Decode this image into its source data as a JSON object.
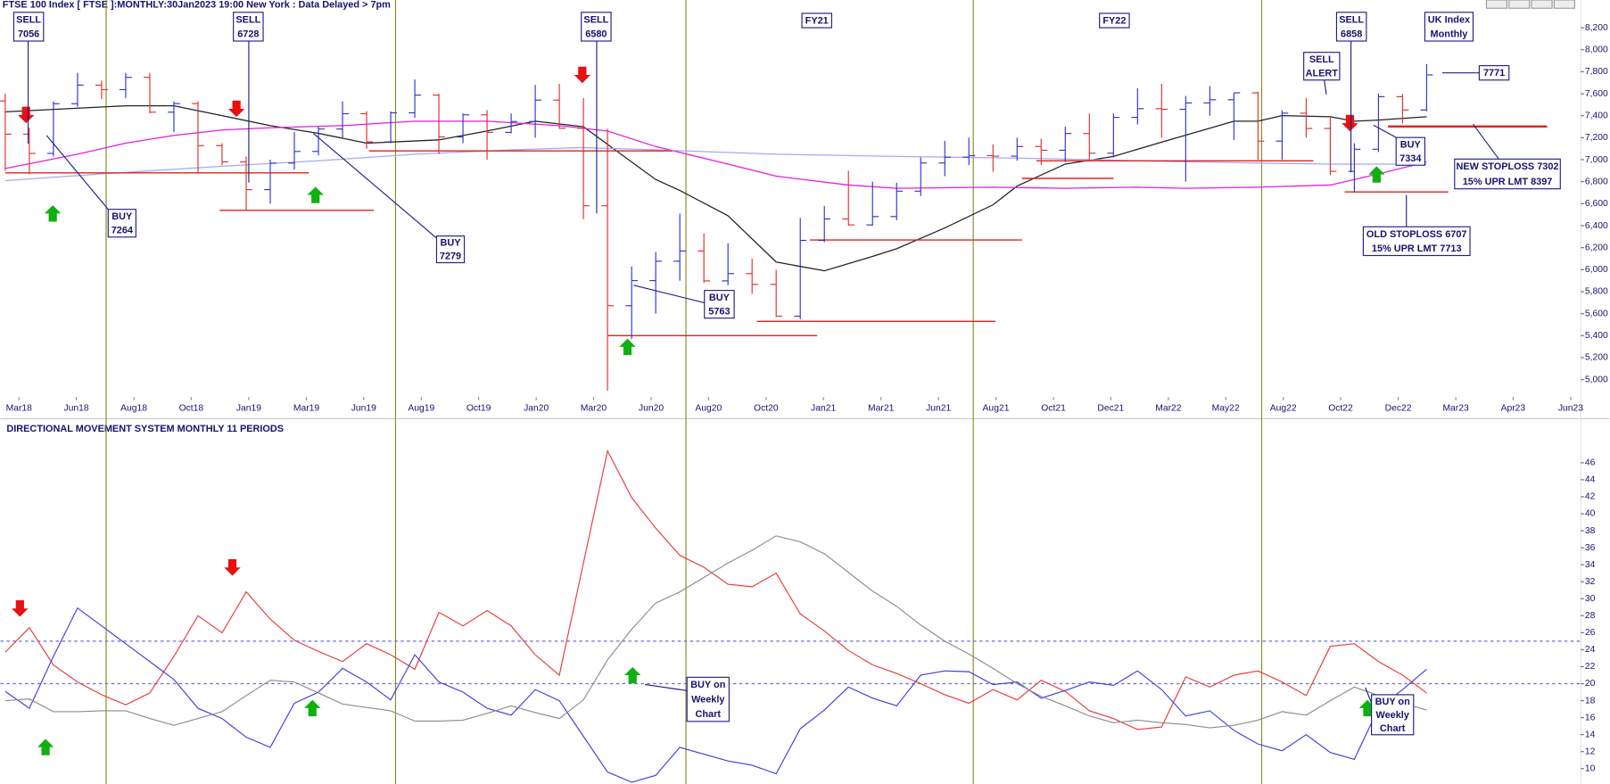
{
  "chart_data": [
    {
      "type": "ohlc",
      "title": "FTSE 100 Index [ FTSE ]:MONTHLY:30Jan2023 19:00 New York : Data Delayed > 7pm",
      "up_color": "#3333cc",
      "down_color": "#e03030",
      "open": [
        7534,
        7232,
        7057,
        7509,
        7678,
        7637,
        7749,
        7432,
        7510,
        7128,
        6980,
        6728,
        6969,
        7075,
        7279,
        7418,
        7162,
        7426,
        7587,
        7207,
        7408,
        7248,
        7347,
        7542,
        7286,
        6581,
        5672,
        5901,
        6077,
        6170,
        5898,
        5964,
        5866,
        5577,
        6266,
        6461,
        6407,
        6483,
        6714,
        6970,
        7023,
        7037,
        7032,
        7120,
        7086,
        7238,
        7059,
        7385,
        7464,
        7458,
        7516,
        7545,
        7608,
        7169,
        7423,
        7284,
        6894,
        7095,
        7573,
        7452
      ],
      "high": [
        7600,
        7290,
        7530,
        7790,
        7720,
        7790,
        7790,
        7530,
        7530,
        7150,
        7030,
        7000,
        7250,
        7300,
        7530,
        7440,
        7440,
        7730,
        7600,
        7420,
        7450,
        7420,
        7680,
        7690,
        7560,
        7280,
        6030,
        6160,
        6510,
        6330,
        6240,
        6100,
        6000,
        6470,
        6580,
        6900,
        6800,
        6790,
        7020,
        7170,
        7200,
        7140,
        7200,
        7190,
        7300,
        7420,
        7420,
        7650,
        7690,
        7580,
        7670,
        7610,
        7620,
        7450,
        7560,
        7400,
        7150,
        7600,
        7600,
        7870
      ],
      "low": [
        6900,
        6867,
        7030,
        7480,
        7550,
        7560,
        7420,
        7250,
        6880,
        6950,
        6540,
        6600,
        6910,
        7040,
        7200,
        7100,
        7150,
        7380,
        7050,
        7150,
        7000,
        7240,
        7200,
        7280,
        6460,
        4900,
        5370,
        5600,
        5900,
        5880,
        5860,
        5780,
        5570,
        5550,
        6250,
        6400,
        6400,
        6450,
        6670,
        6850,
        6950,
        6890,
        6990,
        6950,
        6980,
        7000,
        7020,
        7320,
        7200,
        6800,
        7400,
        7180,
        7000,
        7000,
        7200,
        6860,
        6700,
        7070,
        7330,
        7440
      ],
      "close": [
        7232,
        7057,
        7509,
        7678,
        7637,
        7749,
        7432,
        7510,
        7128,
        6980,
        6728,
        6969,
        7075,
        7279,
        7418,
        7162,
        7426,
        7587,
        7207,
        7408,
        7248,
        7347,
        7542,
        7286,
        6581,
        5672,
        5901,
        6077,
        6170,
        5898,
        5964,
        5866,
        5577,
        6266,
        6461,
        6407,
        6483,
        6714,
        6970,
        7023,
        7037,
        7032,
        7120,
        7086,
        7238,
        7059,
        7385,
        7464,
        7458,
        7516,
        7545,
        7608,
        7169,
        7423,
        7284,
        6894,
        7095,
        7573,
        7452,
        7771
      ],
      "lines": [
        {
          "color": "#222222",
          "x": [
            0,
            5,
            7,
            9,
            11,
            13,
            15,
            18,
            20,
            22,
            24,
            27,
            28,
            30,
            32,
            34,
            36,
            37,
            39,
            41,
            42,
            44,
            46,
            48,
            51,
            52,
            53,
            55,
            56,
            57,
            59
          ],
          "values": [
            7435,
            7490,
            7490,
            7400,
            7310,
            7240,
            7150,
            7180,
            7260,
            7350,
            7300,
            6820,
            6720,
            6490,
            6070,
            5990,
            6120,
            6190,
            6380,
            6590,
            6760,
            6960,
            7030,
            7160,
            7350,
            7350,
            7400,
            7390,
            7350,
            7360,
            7390
          ]
        },
        {
          "color": "#e020e0",
          "x": [
            0,
            3,
            5,
            7,
            9,
            11,
            14,
            17,
            20,
            23,
            25,
            27,
            30,
            32,
            35,
            37,
            41,
            44,
            47,
            49,
            52,
            55,
            57,
            59
          ],
          "values": [
            6920,
            7050,
            7150,
            7220,
            7270,
            7290,
            7310,
            7350,
            7350,
            7310,
            7260,
            7120,
            6960,
            6850,
            6770,
            6740,
            6750,
            6740,
            6750,
            6740,
            6750,
            6770,
            6870,
            6980
          ]
        },
        {
          "color": "#a8a8f0",
          "x": [
            0,
            4,
            9,
            13,
            17,
            21,
            24,
            27,
            32,
            37,
            43,
            49,
            55,
            59
          ],
          "values": [
            6810,
            6870,
            6940,
            6990,
            7050,
            7090,
            7110,
            7090,
            7050,
            7030,
            7010,
            6980,
            6960,
            6960
          ]
        }
      ],
      "levels": [
        {
          "value": 6880,
          "from": 0,
          "to": 12.6
        },
        {
          "value": 6540,
          "from": 8.9,
          "to": 15.3
        },
        {
          "value": 7080,
          "from": 15.1,
          "to": 27.7
        },
        {
          "value": 5400,
          "from": 25.0,
          "to": 33.7
        },
        {
          "value": 5530,
          "from": 31.2,
          "to": 41.1
        },
        {
          "value": 6270,
          "from": 33.4,
          "to": 42.2
        },
        {
          "value": 6830,
          "from": 42.2,
          "to": 46.0
        },
        {
          "value": 6990,
          "from": 42.8,
          "to": 54.3
        },
        {
          "value": 6707,
          "from": 55.6,
          "to": 59.9
        },
        {
          "value": 7302,
          "from": 57.4,
          "to": 64.0
        }
      ],
      "level_color": "#e02020",
      "annotations": [
        {
          "lines": [
            "SELL",
            "7056"
          ]
        },
        {
          "lines": [
            "SELL",
            "6728"
          ]
        },
        {
          "lines": [
            "SELL",
            "6580"
          ]
        },
        {
          "lines": [
            "FY21"
          ]
        },
        {
          "lines": [
            "FY22"
          ]
        },
        {
          "lines": [
            "SELL",
            "6858"
          ]
        },
        {
          "lines": [
            "UK Index",
            "Monthly"
          ]
        },
        {
          "lines": [
            "SELL",
            "ALERT"
          ]
        },
        {
          "lines": [
            "7771"
          ]
        },
        {
          "lines": [
            "BUY",
            "7264"
          ]
        },
        {
          "lines": [
            "BUY",
            "7279"
          ]
        },
        {
          "lines": [
            "BUY",
            "5763"
          ]
        },
        {
          "lines": [
            "BUY",
            "7334"
          ]
        },
        {
          "lines": [
            "NEW STOPLOSS 7302",
            "15% UPR LMT 8397"
          ]
        },
        {
          "lines": [
            "OLD STOPLOSS 6707",
            "15% UPR LMT 7713"
          ]
        }
      ],
      "xlim": [
        -0.2,
        65.4
      ],
      "xticks": [
        {
          "value": 0.57,
          "label": "Mar18"
        },
        {
          "value": 2.95,
          "label": "Jun18"
        },
        {
          "value": 5.34,
          "label": "Aug18"
        },
        {
          "value": 7.72,
          "label": "Oct18"
        },
        {
          "value": 10.11,
          "label": "Jan19"
        },
        {
          "value": 12.5,
          "label": "Mar19"
        },
        {
          "value": 14.88,
          "label": "Jun19"
        },
        {
          "value": 17.27,
          "label": "Aug19"
        },
        {
          "value": 19.65,
          "label": "Oct19"
        },
        {
          "value": 22.04,
          "label": "Jan20"
        },
        {
          "value": 24.42,
          "label": "Mar20"
        },
        {
          "value": 26.81,
          "label": "Jun20"
        },
        {
          "value": 29.19,
          "label": "Aug20"
        },
        {
          "value": 31.58,
          "label": "Oct20"
        },
        {
          "value": 33.96,
          "label": "Jan21"
        },
        {
          "value": 36.35,
          "label": "Mar21"
        },
        {
          "value": 38.74,
          "label": "Jun21"
        },
        {
          "value": 41.12,
          "label": "Aug21"
        },
        {
          "value": 43.51,
          "label": "Oct21"
        },
        {
          "value": 45.89,
          "label": "Dec21"
        },
        {
          "value": 48.28,
          "label": "Mar22"
        },
        {
          "value": 50.66,
          "label": "May22"
        },
        {
          "value": 53.05,
          "label": "Aug22"
        },
        {
          "value": 55.43,
          "label": "Oct22"
        },
        {
          "value": 57.82,
          "label": "Dec22"
        },
        {
          "value": 60.21,
          "label": "Mar23"
        },
        {
          "value": 62.59,
          "label": "Apr23"
        },
        {
          "value": 64.98,
          "label": "Jun23"
        }
      ],
      "ylim": [
        4841,
        8452
      ],
      "yticks": [
        {
          "value": 5000,
          "label": "5,000"
        },
        {
          "value": 5200,
          "label": "5,200"
        },
        {
          "value": 5400,
          "label": "5,400"
        },
        {
          "value": 5600,
          "label": "5,600"
        },
        {
          "value": 5800,
          "label": "5,800"
        },
        {
          "value": 6000,
          "label": "6,000"
        },
        {
          "value": 6200,
          "label": "6,200"
        },
        {
          "value": 6400,
          "label": "6,400"
        },
        {
          "value": 6600,
          "label": "6,600"
        },
        {
          "value": 6800,
          "label": "6,800"
        },
        {
          "value": 7000,
          "label": "7,000"
        },
        {
          "value": 7200,
          "label": "7,200"
        },
        {
          "value": 7400,
          "label": "7,400"
        },
        {
          "value": 7600,
          "label": "7,600"
        },
        {
          "value": 7800,
          "label": "7,800"
        },
        {
          "value": 8000,
          "label": "8,000"
        },
        {
          "value": 8200,
          "label": "8,200"
        }
      ]
    },
    {
      "type": "line",
      "title": "DIRECTIONAL MOVEMENT SYSTEM MONTHLY 11 PERIODS",
      "series": [
        {
          "color": "#e83a3a",
          "values": [
            23.7,
            26.6,
            22.2,
            20.2,
            18.7,
            17.5,
            18.9,
            23.2,
            28.0,
            26.0,
            30.8,
            27.6,
            25.1,
            23.8,
            22.6,
            24.7,
            23.4,
            21.7,
            28.4,
            26.8,
            28.6,
            26.8,
            23.4,
            21.0,
            34.2,
            47.4,
            41.9,
            38.3,
            35.1,
            33.7,
            31.7,
            31.4,
            33.0,
            28.2,
            26.2,
            23.9,
            22.2,
            21.2,
            20.0,
            18.7,
            17.7,
            19.3,
            18.1,
            20.4,
            19.1,
            16.8,
            15.9,
            14.6,
            14.9,
            20.8,
            19.6,
            21.0,
            21.5,
            20.2,
            18.6,
            24.4,
            24.7,
            22.6,
            21.0,
            18.9
          ]
        },
        {
          "color": "#4040dc",
          "values": [
            19.1,
            17.1,
            23.2,
            28.9,
            26.8,
            24.7,
            22.6,
            20.5,
            17.1,
            15.9,
            13.7,
            12.5,
            17.7,
            19.0,
            21.8,
            20.2,
            18.1,
            23.4,
            20.2,
            19.0,
            17.1,
            16.3,
            19.3,
            18.0,
            13.8,
            9.6,
            8.4,
            9.2,
            12.5,
            11.7,
            10.9,
            10.4,
            9.4,
            14.7,
            16.9,
            19.6,
            18.3,
            17.4,
            21.0,
            21.5,
            21.4,
            19.9,
            20.2,
            18.3,
            19.2,
            20.2,
            19.8,
            21.5,
            19.3,
            16.2,
            16.8,
            14.5,
            12.9,
            12.1,
            14.0,
            11.9,
            11.1,
            17.1,
            19.3,
            21.7
          ]
        },
        {
          "color": "#8c8c8c",
          "values": [
            18.0,
            18.2,
            16.7,
            16.7,
            16.8,
            16.8,
            15.9,
            15.1,
            15.9,
            16.7,
            18.6,
            20.4,
            20.2,
            18.9,
            17.6,
            17.2,
            16.8,
            15.6,
            15.6,
            15.7,
            16.5,
            17.4,
            16.6,
            15.9,
            18.1,
            22.8,
            26.4,
            29.5,
            30.8,
            32.5,
            34.2,
            35.7,
            37.4,
            36.7,
            35.3,
            33.1,
            30.9,
            29.1,
            26.9,
            25.0,
            23.5,
            21.8,
            20.0,
            18.5,
            17.4,
            16.2,
            15.4,
            15.7,
            15.4,
            15.2,
            14.8,
            15.1,
            15.7,
            16.7,
            16.3,
            18.0,
            19.6,
            18.6,
            17.7,
            16.9
          ]
        }
      ],
      "reference_lines": [
        25,
        20
      ],
      "reference_color": "#6a6ad0",
      "annotations": [
        {
          "lines": [
            "BUY on",
            "Weekly",
            "Chart"
          ]
        },
        {
          "lines": [
            "BUY on",
            "Weekly",
            "Chart"
          ]
        }
      ],
      "xlim": [
        -0.2,
        65.4
      ],
      "ylim": [
        8.19,
        50.95
      ],
      "yticks": [
        10,
        12,
        14,
        16,
        18,
        20,
        22,
        24,
        26,
        28,
        30,
        32,
        34,
        36,
        38,
        40,
        42,
        44,
        46
      ]
    }
  ]
}
